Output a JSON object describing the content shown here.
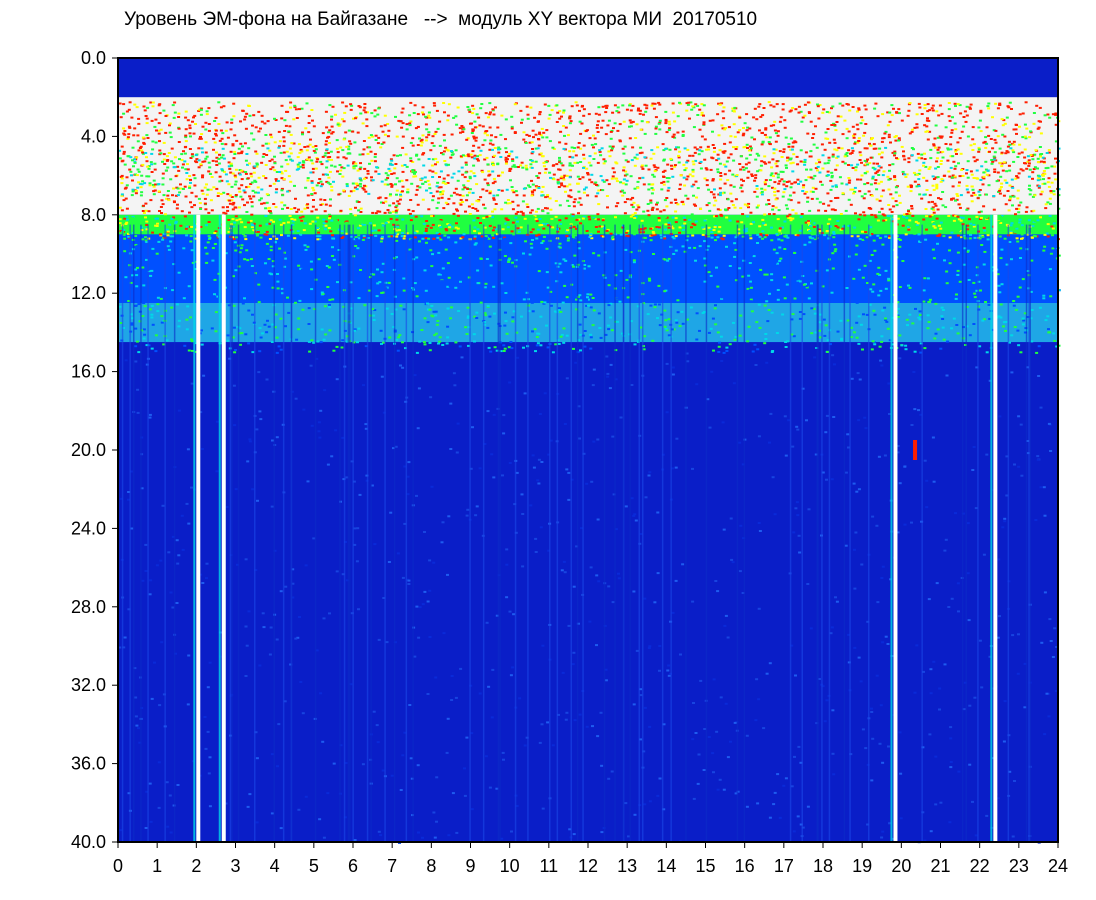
{
  "chart_data": {
    "type": "heatmap",
    "title": "Уровень ЭМ-фона на Байгазане   -->  модуль XY вектора МИ  20170510",
    "xlabel": "",
    "ylabel": "",
    "xlim": [
      0,
      24
    ],
    "ylim": [
      0.0,
      40.0
    ],
    "y_inverted": true,
    "x_ticks": [
      "0",
      "1",
      "2",
      "3",
      "4",
      "5",
      "6",
      "7",
      "8",
      "9",
      "10",
      "11",
      "12",
      "13",
      "14",
      "15",
      "16",
      "17",
      "18",
      "19",
      "20",
      "21",
      "22",
      "23",
      "24"
    ],
    "y_ticks": [
      "0.0",
      "4.0",
      "8.0",
      "12.0",
      "16.0",
      "20.0",
      "24.0",
      "28.0",
      "32.0",
      "36.0",
      "40.0"
    ],
    "colormap": [
      "#0000b4",
      "#0050ff",
      "#00d8e8",
      "#20ff40",
      "#ffff00",
      "#ff1e00",
      "#ffffff"
    ],
    "background_level_color": "#0a1ec8",
    "bands": [
      {
        "y_from": 2.0,
        "y_to": 8.0,
        "level": "high",
        "dominant_colors": [
          "#ff1e00",
          "#ffff00",
          "#20ff40"
        ]
      },
      {
        "y_from": 8.0,
        "y_to": 9.0,
        "level": "medium-high",
        "dominant_colors": [
          "#20ff40",
          "#00d8e8"
        ]
      },
      {
        "y_from": 9.0,
        "y_to": 12.5,
        "level": "medium",
        "dominant_colors": [
          "#0050ff",
          "#00d8e8"
        ]
      },
      {
        "y_from": 12.5,
        "y_to": 14.5,
        "level": "medium",
        "dominant_colors": [
          "#00d8e8"
        ]
      },
      {
        "y_from": 14.5,
        "y_to": 40.0,
        "level": "low",
        "dominant_colors": [
          "#0a1ec8"
        ]
      }
    ],
    "gaps": [
      {
        "x": 2.05,
        "y_from": 8.0,
        "y_to": 40.0,
        "type": "dropout"
      },
      {
        "x": 2.7,
        "y_from": 8.0,
        "y_to": 40.0,
        "type": "dropout"
      },
      {
        "x": 19.85,
        "y_from": 8.0,
        "y_to": 40.0,
        "type": "dropout"
      },
      {
        "x": 22.4,
        "y_from": 8.0,
        "y_to": 40.0,
        "type": "dropout"
      }
    ],
    "hotspots": [
      {
        "x": 20.35,
        "y": 20.0,
        "color": "#ff1e00"
      }
    ]
  }
}
